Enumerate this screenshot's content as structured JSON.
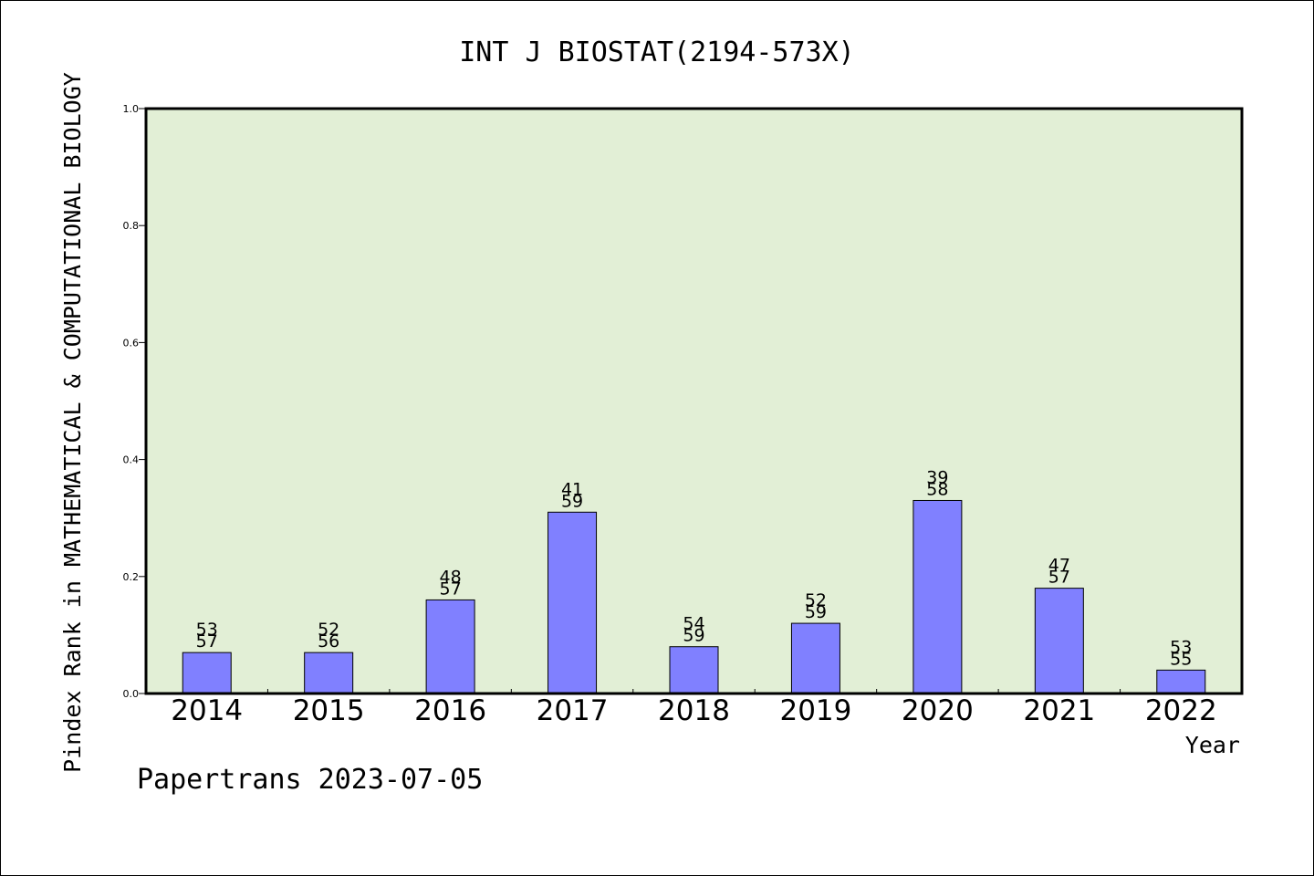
{
  "chart_data": {
    "type": "bar",
    "title": "INT J BIOSTAT(2194-573X)",
    "ylabel": "Pindex Rank in MATHEMATICAL & COMPUTATIONAL BIOLOGY",
    "xlabel": "Year",
    "footer": "Papertrans 2023-07-05",
    "ylim": [
      0,
      1.0
    ],
    "yticks": [
      "0.0",
      "0.2",
      "0.4",
      "0.6",
      "0.8",
      "1.0"
    ],
    "ytick_values": [
      0.0,
      0.2,
      0.4,
      0.6,
      0.8,
      1.0
    ],
    "categories": [
      "2014",
      "2015",
      "2016",
      "2017",
      "2018",
      "2019",
      "2020",
      "2021",
      "2022"
    ],
    "values": [
      0.07,
      0.07,
      0.16,
      0.31,
      0.08,
      0.12,
      0.33,
      0.18,
      0.04
    ],
    "rank_labels": [
      "53",
      "52",
      "48",
      "41",
      "54",
      "52",
      "39",
      "47",
      "53"
    ],
    "total_labels": [
      "57",
      "56",
      "57",
      "59",
      "59",
      "59",
      "58",
      "57",
      "55"
    ],
    "grid": false,
    "colors": {
      "bar": "#8080ff",
      "plot_background": "#e2efd6",
      "axis": "#000000"
    }
  }
}
